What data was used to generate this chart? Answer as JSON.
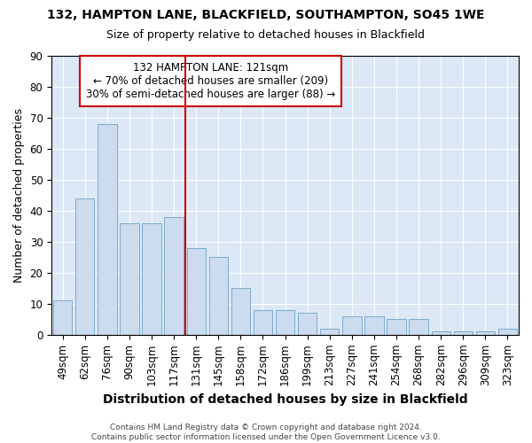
{
  "title1": "132, HAMPTON LANE, BLACKFIELD, SOUTHAMPTON, SO45 1WE",
  "title2": "Size of property relative to detached houses in Blackfield",
  "xlabel": "Distribution of detached houses by size in Blackfield",
  "ylabel": "Number of detached properties",
  "categories": [
    "49sqm",
    "62sqm",
    "76sqm",
    "90sqm",
    "103sqm",
    "117sqm",
    "131sqm",
    "145sqm",
    "158sqm",
    "172sqm",
    "186sqm",
    "199sqm",
    "213sqm",
    "227sqm",
    "241sqm",
    "254sqm",
    "268sqm",
    "282sqm",
    "296sqm",
    "309sqm",
    "323sqm"
  ],
  "values": [
    11,
    44,
    68,
    36,
    36,
    38,
    28,
    25,
    15,
    8,
    8,
    7,
    2,
    6,
    6,
    5,
    5,
    1,
    1,
    1,
    2
  ],
  "bar_color": "#ccdcee",
  "bar_edge_color": "#7aaace",
  "vline_x": 5.5,
  "vline_color": "#cc0000",
  "annotation_line1": "132 HAMPTON LANE: 121sqm",
  "annotation_line2": "← 70% of detached houses are smaller (209)",
  "annotation_line3": "30% of semi-detached houses are larger (88) →",
  "annotation_box_color": "#ffffff",
  "annotation_box_edge": "#cc0000",
  "footer": "Contains HM Land Registry data © Crown copyright and database right 2024.\nContains public sector information licensed under the Open Government Licence v3.0.",
  "ylim": [
    0,
    90
  ],
  "background_color": "#ffffff",
  "axes_background": "#dce8f5"
}
